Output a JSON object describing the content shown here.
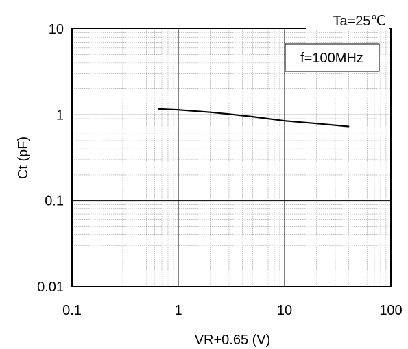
{
  "chart_data": {
    "type": "line",
    "xscale": "log",
    "yscale": "log",
    "xlim": [
      0.1,
      100
    ],
    "ylim": [
      0.01,
      10
    ],
    "xlabel": "VR+0.65 (V)",
    "ylabel": "Ct (pF)",
    "x_ticks": [
      "0.1",
      "1",
      "10",
      "100"
    ],
    "y_ticks": [
      "10",
      "1",
      "0.1",
      "0.01"
    ],
    "annotations": {
      "condition_top": "Ta=25℃",
      "condition_box": "f=100MHz"
    },
    "grid": true,
    "legend": "none",
    "series": [
      {
        "x": [
          0.65,
          1.0,
          2.0,
          3.0,
          5.0,
          10.0,
          20.0,
          40.0
        ],
        "y": [
          1.17,
          1.14,
          1.07,
          1.02,
          0.95,
          0.85,
          0.79,
          0.73
        ],
        "color": "#000000"
      }
    ]
  }
}
